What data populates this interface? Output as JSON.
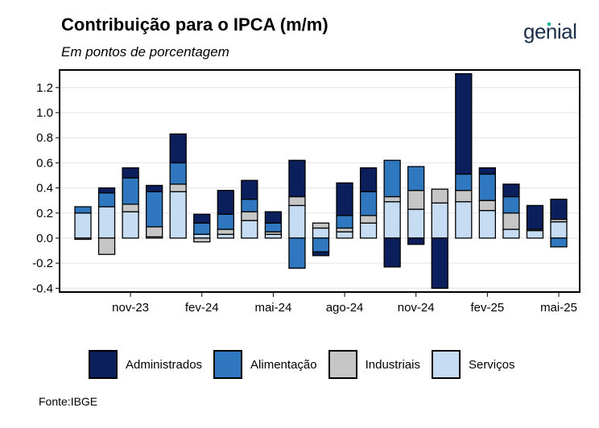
{
  "title": "Contribuição para o IPCA (m/m)",
  "subtitle": "Em pontos de porcentagem",
  "brand": "genial",
  "source": "Fonte:IBGE",
  "colors": {
    "Administrados": "#0b1f5c",
    "Alimentação": "#2f77be",
    "Industriais": "#c6c6c6",
    "Serviços": "#c5dcf2"
  },
  "chart_data": {
    "type": "bar",
    "stacked": true,
    "title": "Contribuição para o IPCA (m/m)",
    "subtitle": "Em pontos de porcentagem",
    "ylim": [
      -0.43,
      1.34
    ],
    "yticks": [
      -0.4,
      -0.2,
      0.0,
      0.2,
      0.4,
      0.6,
      0.8,
      1.0,
      1.2
    ],
    "ytick_labels": [
      "-0.4",
      "-0.2",
      "0.0",
      "0.2",
      "0.4",
      "0.6",
      "0.8",
      "1.0",
      "1.2"
    ],
    "xtick_labels": [
      {
        "index": 1,
        "label": "nov-23"
      },
      {
        "index": 4,
        "label": "fev-24"
      },
      {
        "index": 7,
        "label": "mai-24"
      },
      {
        "index": 10,
        "label": "ago-24"
      },
      {
        "index": 13,
        "label": "nov-24"
      },
      {
        "index": 16,
        "label": "fev-25"
      },
      {
        "index": 19,
        "label": "mai-25"
      }
    ],
    "grid": true,
    "legend_position": "bottom",
    "categories": [
      "set-23",
      "out-23",
      "nov-23",
      "dez-23",
      "jan-24",
      "fev-24",
      "mar-24",
      "abr-24",
      "mai-24",
      "jun-24",
      "jul-24",
      "ago-24",
      "set-24",
      "out-24",
      "nov-24",
      "dez-24",
      "jan-25",
      "fev-25",
      "mar-25",
      "abr-25",
      "mai-25",
      "jun-25"
    ],
    "series": [
      {
        "name": "Serviços",
        "values": [
          0.2,
          0.25,
          0.21,
          0.01,
          0.37,
          0.03,
          0.03,
          0.14,
          0.03,
          0.26,
          0.08,
          0.05,
          0.12,
          0.29,
          0.23,
          0.28,
          0.29,
          0.22,
          0.07,
          0.06,
          0.13,
          0.0
        ]
      },
      {
        "name": "Industriais",
        "values": [
          -0.01,
          -0.13,
          0.06,
          0.08,
          0.06,
          -0.03,
          0.04,
          0.07,
          0.02,
          0.07,
          0.04,
          0.03,
          0.06,
          0.04,
          0.15,
          0.11,
          0.09,
          0.08,
          0.13,
          0.01,
          0.02,
          0.0
        ]
      },
      {
        "name": "Alimentação",
        "values": [
          0.05,
          0.11,
          0.21,
          0.28,
          0.17,
          0.09,
          0.12,
          0.1,
          0.07,
          -0.24,
          -0.11,
          0.1,
          0.19,
          0.29,
          0.19,
          0.0,
          0.13,
          0.21,
          0.13,
          0.0,
          -0.07,
          0.0
        ]
      },
      {
        "name": "Administrados",
        "values": [
          0.0,
          0.04,
          0.08,
          0.05,
          0.23,
          0.07,
          0.19,
          0.15,
          0.09,
          0.29,
          -0.03,
          0.26,
          0.19,
          -0.23,
          -0.05,
          -0.4,
          0.8,
          0.05,
          0.1,
          0.19,
          0.16,
          0.0
        ]
      }
    ],
    "legend": [
      "Administrados",
      "Alimentação",
      "Industriais",
      "Serviços"
    ]
  }
}
